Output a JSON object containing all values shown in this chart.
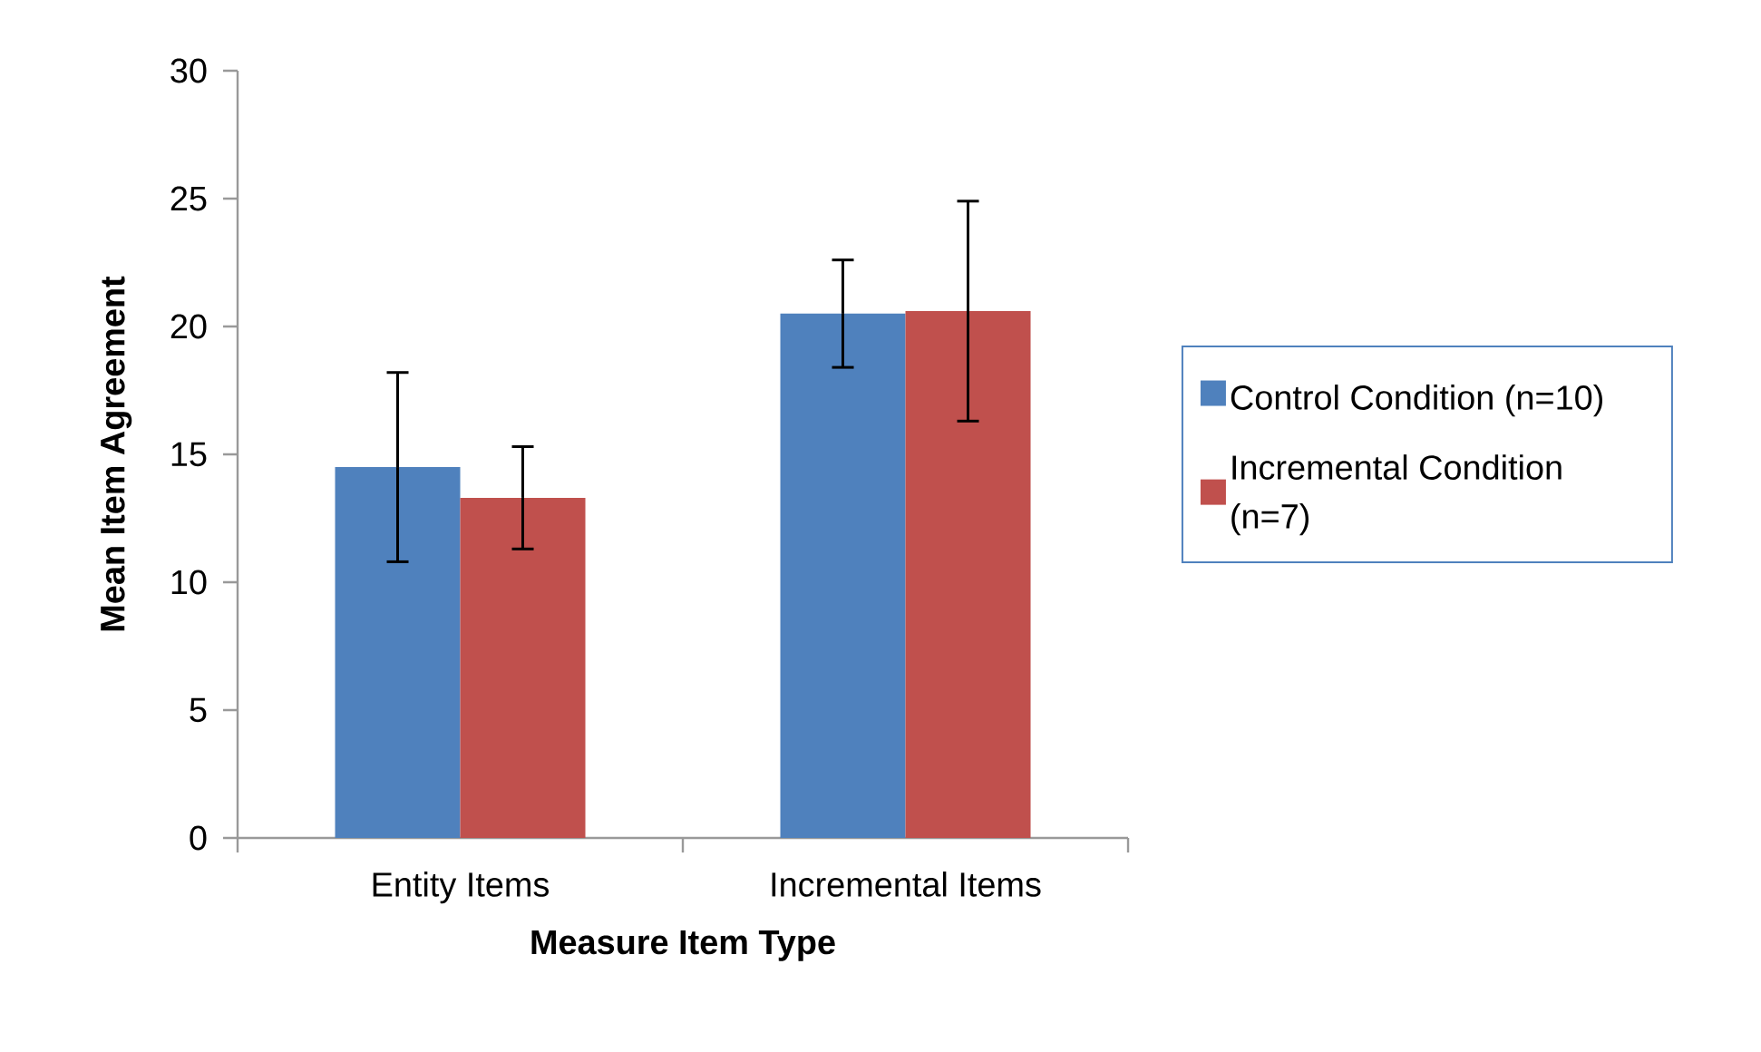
{
  "chart_data": {
    "type": "bar",
    "xlabel": "Measure Item Type",
    "ylabel": "Mean Item Agreement",
    "categories": [
      "Entity Items",
      "Incremental Items"
    ],
    "series": [
      {
        "name": "Control Condition (n=10)",
        "color": "#4f81bd",
        "values": [
          14.5,
          20.5
        ],
        "errors": [
          3.7,
          2.1
        ]
      },
      {
        "name": "Incremental Condition (n=7)",
        "color": "#c0504d",
        "values": [
          13.3,
          20.6
        ],
        "errors": [
          2.0,
          4.3
        ]
      }
    ],
    "ylim": [
      0,
      30
    ],
    "yticks": [
      0,
      5,
      10,
      15,
      20,
      25,
      30
    ],
    "grid": false,
    "legend": "right"
  }
}
